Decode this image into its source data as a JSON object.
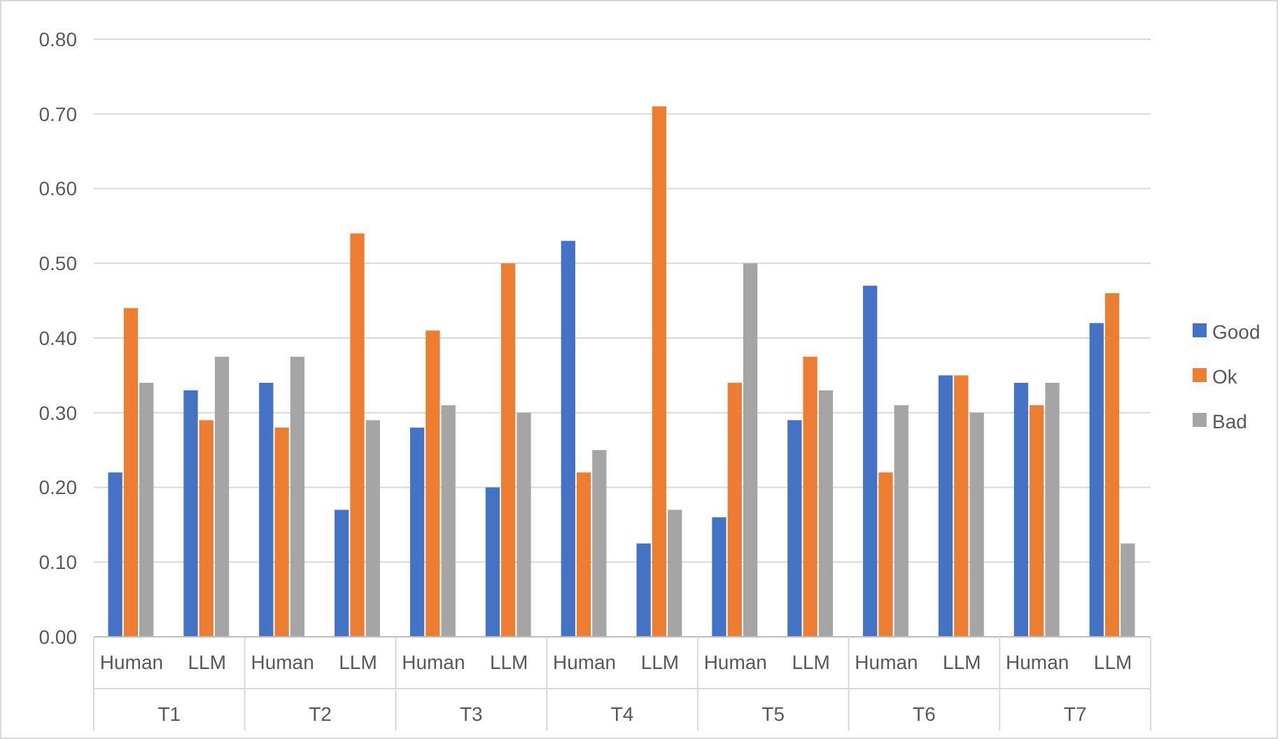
{
  "chart_data": {
    "type": "bar",
    "categories": [
      "Human",
      "LLM",
      "Human",
      "LLM",
      "Human",
      "LLM",
      "Human",
      "LLM",
      "Human",
      "LLM",
      "Human",
      "LLM",
      "Human",
      "LLM"
    ],
    "annotations": [
      "T1",
      "T2",
      "T3",
      "T4",
      "T5",
      "T6",
      "T7"
    ],
    "series": [
      {
        "name": "Good",
        "color": "#4472c4",
        "values": [
          0.22,
          0.33,
          0.34,
          0.17,
          0.28,
          0.2,
          0.53,
          0.125,
          0.16,
          0.29,
          0.47,
          0.35,
          0.34,
          0.42
        ]
      },
      {
        "name": "Ok",
        "color": "#ed7d31",
        "values": [
          0.44,
          0.29,
          0.28,
          0.54,
          0.41,
          0.5,
          0.22,
          0.71,
          0.34,
          0.375,
          0.22,
          0.35,
          0.31,
          0.46
        ]
      },
      {
        "name": "Bad",
        "color": "#a5a5a5",
        "values": [
          0.34,
          0.375,
          0.375,
          0.29,
          0.31,
          0.3,
          0.25,
          0.17,
          0.5,
          0.33,
          0.31,
          0.3,
          0.34,
          0.125
        ]
      }
    ],
    "ylim": [
      0,
      0.8
    ],
    "yticks": [
      {
        "value": 0,
        "label": "0.00"
      },
      {
        "value": 0.1,
        "label": "0.10"
      },
      {
        "value": 0.2,
        "label": "0.20"
      },
      {
        "value": 0.3,
        "label": "0.30"
      },
      {
        "value": 0.4,
        "label": "0.40"
      },
      {
        "value": 0.5,
        "label": "0.50"
      },
      {
        "value": 0.6,
        "label": "0.60"
      },
      {
        "value": 0.7,
        "label": "0.70"
      },
      {
        "value": 0.8,
        "label": "0.80"
      }
    ],
    "grid": "y",
    "legend": "right"
  }
}
